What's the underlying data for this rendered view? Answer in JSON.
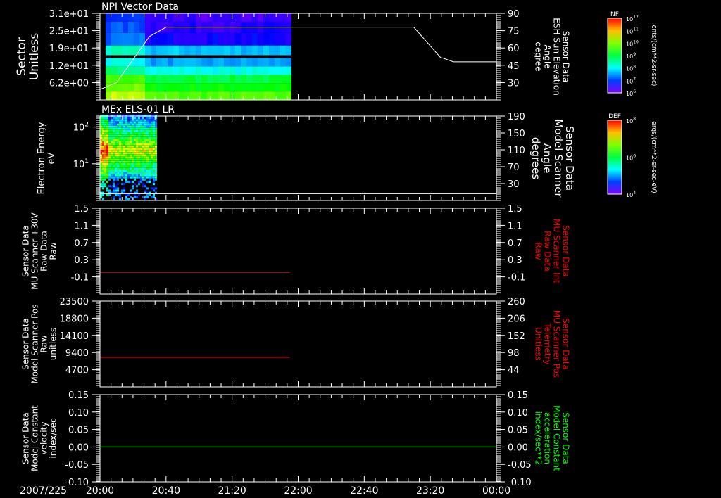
{
  "chart_data": [
    {
      "type": "heatmap",
      "title": "NPI Vector Data",
      "ylabel": [
        "Sector",
        "Unitless"
      ],
      "yticks": [
        "3.1e+01",
        "2.5e+01",
        "1.9e+01",
        "1.2e+01",
        "6.2e+00"
      ],
      "ytick_values": [
        31,
        24.8,
        18.6,
        12.4,
        6.2
      ],
      "ylim": [
        0,
        31
      ],
      "y2label": [
        "Sensor Data",
        "ESH Sun Elevation",
        "Angle",
        "degree"
      ],
      "y2ticks": [
        "90",
        "75",
        "60",
        "45",
        "30"
      ],
      "y2lim": [
        15,
        90
      ],
      "data_end_minutes": 114,
      "overlay_line": {
        "color": "#ffffff",
        "x_minutes": [
          0,
          10,
          20,
          30,
          40,
          60,
          190,
          198,
          206,
          214,
          240
        ],
        "y": [
          24,
          30,
          50,
          70,
          78,
          78,
          78,
          65,
          52,
          48,
          48
        ]
      },
      "colorbar": {
        "label": "NF",
        "ticks": [
          "10^12",
          "10^11",
          "10^10",
          "10^9",
          "10^8",
          "10^7",
          "10^6"
        ],
        "units": "cnts/(cm**2-sr-sec)"
      }
    },
    {
      "type": "heatmap",
      "title": "MEx ELS-01 LR",
      "ylabel": [
        "Electron Energy",
        "eV"
      ],
      "yticks": [
        "10^2",
        "10^1"
      ],
      "ylim_log10": [
        0,
        2.3
      ],
      "y2label": [
        "Sensor Data",
        "Model Scanner",
        "Angle",
        "degrees"
      ],
      "y2ticks": [
        "190",
        "150",
        "110",
        "70",
        "30"
      ],
      "y2lim": [
        -10,
        190
      ],
      "data_end_minutes": 34,
      "overlay_line": {
        "color": "#ffffff",
        "x_minutes": [
          0,
          240
        ],
        "y": [
          6,
          6
        ]
      },
      "colorbar": {
        "label": "DEF",
        "ticks": [
          "10^8",
          "10^6",
          "10^4"
        ],
        "units": "ergs/(cm**2-sr-sec-eV)"
      }
    },
    {
      "type": "line",
      "ylabel": [
        "Sensor Data",
        "MU Scanner +30V",
        "Raw Data",
        "Raw"
      ],
      "yticks": [
        "1.5",
        "1.1",
        "0.7",
        "0.3",
        "-0.1"
      ],
      "ylim": [
        -0.5,
        1.5
      ],
      "y2label": [
        "Sensor Data",
        "MU Scanner Int",
        "Raw Data",
        "Raw"
      ],
      "y2ticks": [
        "1.5",
        "1.1",
        "0.7",
        "0.3",
        "-0.1"
      ],
      "y2lim": [
        -0.5,
        1.5
      ],
      "series": [
        {
          "name": "MU Scanner +30V",
          "color": "#b00000",
          "x_minutes": [
            0,
            115
          ],
          "y": [
            0,
            0
          ]
        }
      ]
    },
    {
      "type": "line",
      "ylabel": [
        "Sensor Data",
        "Model Scanner Pos",
        "Raw",
        "unitless"
      ],
      "yticks": [
        "23500",
        "18800",
        "14100",
        "9400",
        "4700"
      ],
      "ylim": [
        0,
        23500
      ],
      "y2label": [
        "Sensor Data",
        "MU Scanner Pos",
        "Telemetry",
        "Unitless"
      ],
      "y2ticks": [
        "260",
        "206",
        "152",
        "98",
        "44"
      ],
      "y2lim": [
        -10,
        260
      ],
      "series": [
        {
          "name": "Model Scanner Pos",
          "color": "#ff0000",
          "x_minutes": [
            0,
            115
          ],
          "y": [
            8100,
            8100
          ]
        }
      ]
    },
    {
      "type": "line",
      "ylabel": [
        "Sensor Data",
        "Model Constant",
        "velocity",
        "index/sec"
      ],
      "yticks": [
        "0.15",
        "0.10",
        "0.05",
        "0.00",
        "-0.05",
        "-0.10"
      ],
      "ylim": [
        -0.1,
        0.15
      ],
      "y2label": [
        "Sensor Data",
        "Model Constant",
        "acceleration",
        "index/sec**2"
      ],
      "y2ticks": [
        "0.15",
        "0.10",
        "0.05",
        "0.00",
        "-0.05",
        "-0.10"
      ],
      "y2lim": [
        -0.1,
        0.15
      ],
      "series": [
        {
          "name": "velocity",
          "color": "#00ff00",
          "x_minutes": [
            0,
            240
          ],
          "y": [
            0,
            0
          ]
        }
      ]
    }
  ],
  "xaxis": {
    "date": "2007/225",
    "ticks": [
      "20:00",
      "20:40",
      "21:20",
      "22:00",
      "22:40",
      "23:20",
      "00:00"
    ],
    "range_minutes": [
      0,
      240
    ]
  },
  "colors": {
    "red_label": "#ff0000",
    "green_label": "#00ff00"
  }
}
